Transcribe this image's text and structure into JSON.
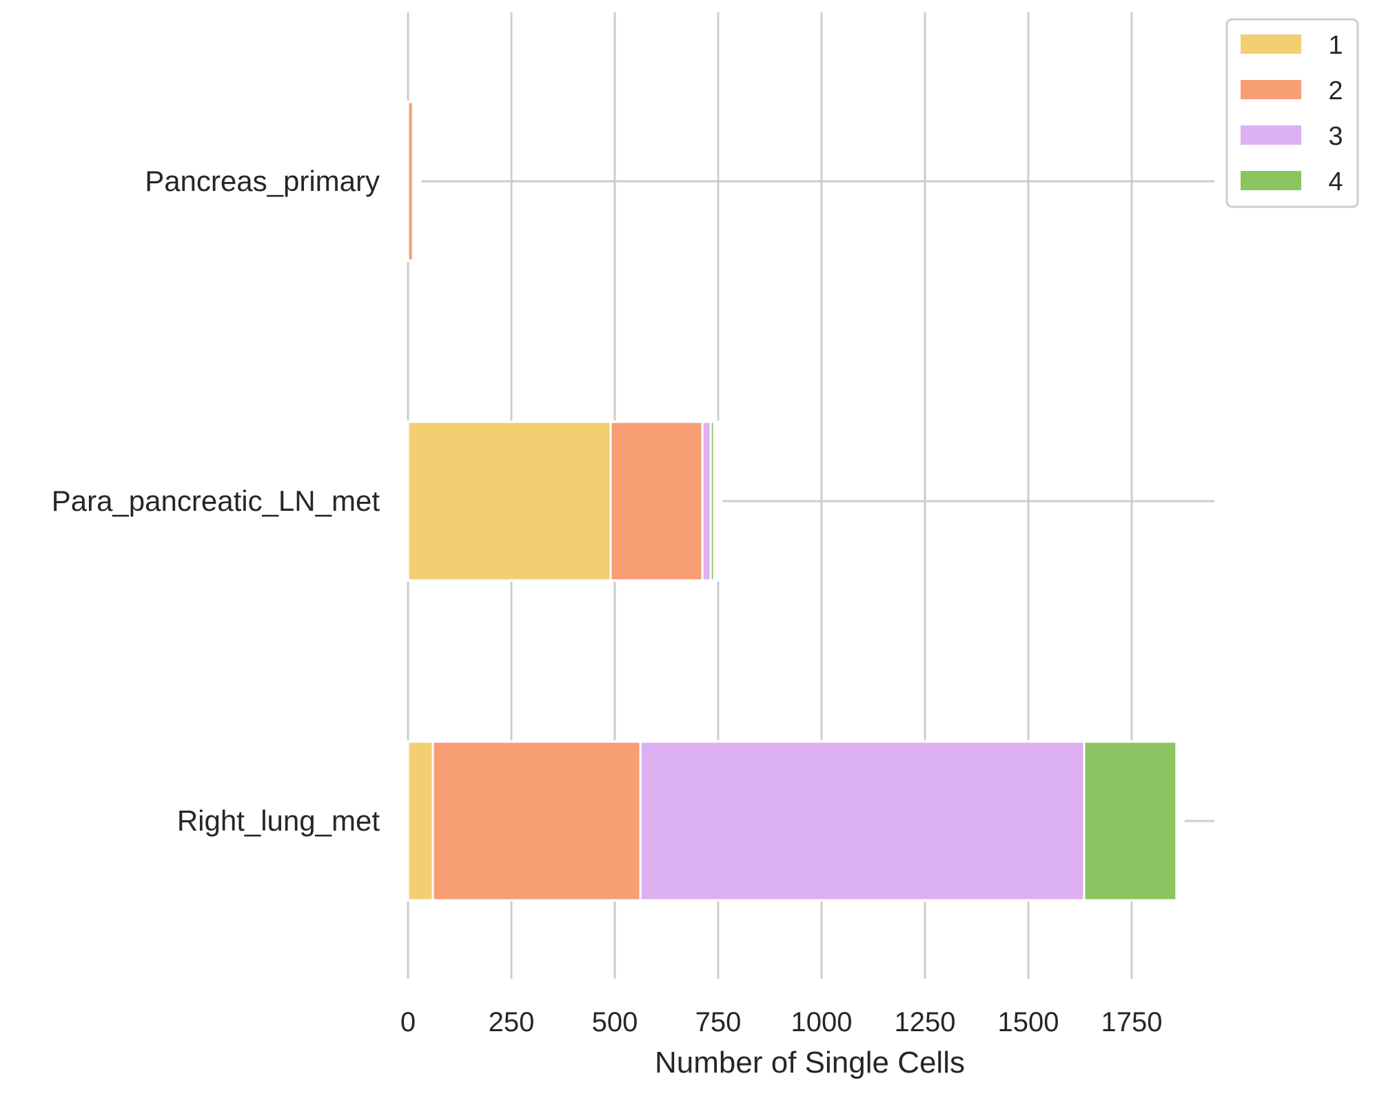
{
  "chart_data": {
    "type": "bar",
    "orientation": "horizontal",
    "stacked": true,
    "categories": [
      "Pancreas_primary",
      "Para_pancreatic_LN_met",
      "Right_lung_met"
    ],
    "series": [
      {
        "name": "1",
        "color": "#f4cf72",
        "values": [
          0,
          490,
          60
        ]
      },
      {
        "name": "2",
        "color": "#f79e75",
        "values": [
          12,
          222,
          502
        ]
      },
      {
        "name": "3",
        "color": "#ddb0f2",
        "values": [
          0,
          20,
          1073
        ]
      },
      {
        "name": "4",
        "color": "#8bc561",
        "values": [
          0,
          8,
          223
        ]
      }
    ],
    "xlabel": "Number of Single Cells",
    "ylabel": "",
    "xlim": [
      0,
      1950
    ],
    "xticks": [
      0,
      250,
      500,
      750,
      1000,
      1250,
      1500,
      1750
    ],
    "grid": true,
    "legend_position": "top-right outside"
  }
}
